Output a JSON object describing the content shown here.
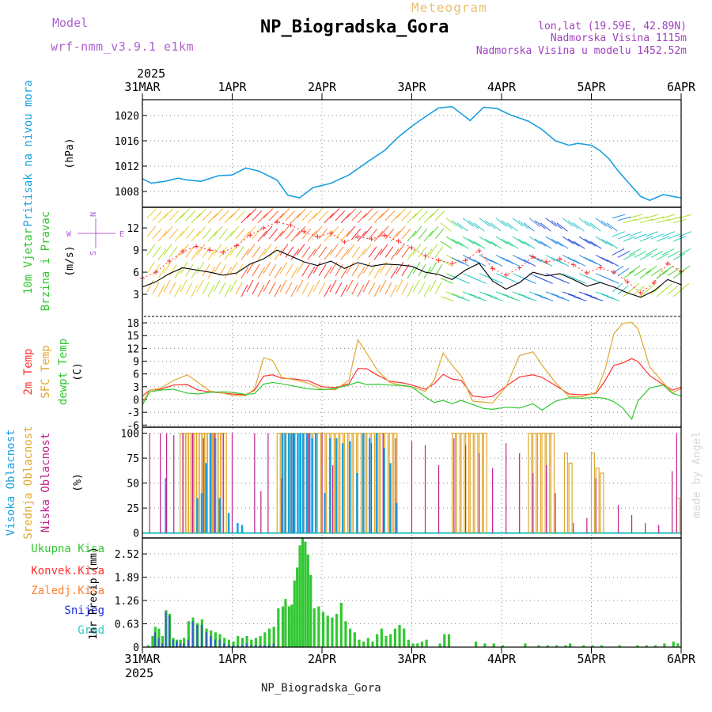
{
  "header": {
    "model_label": "Model",
    "model_name": "wrf-nmm_v3.9.1 e1km",
    "meteogram_label": "Meteogram",
    "station_title": "NP_Biogradska_Gora",
    "lonlat": "lon,lat (19.59E, 42.89N)",
    "elevation": "Nadmorska Visina 1115m",
    "model_elevation": "Nadmorska Visina u modelu 1452.52m",
    "footer": "NP_Biogradska_Gora",
    "credit": "made by Angel",
    "colors": {
      "model": "#b060d0",
      "meteogram": "#e8c070",
      "title": "#000000",
      "info": "#a040c0",
      "credit": "#d8d8d8"
    }
  },
  "time_axis": {
    "top_year": "2025",
    "bottom_year": "2025",
    "labels": [
      "31MAR",
      "1APR",
      "2APR",
      "3APR",
      "4APR",
      "5APR",
      "6APR"
    ],
    "start_day": 0,
    "end_day": 6
  },
  "chart_data": [
    {
      "name": "pressure",
      "type": "line",
      "ylabel_title": "Pritisak na nivou mora",
      "ylabel_unit": "(hPa)",
      "y_ticks": [
        "1008",
        "1012",
        "1016",
        "1020"
      ],
      "y_tick_values": [
        1008,
        1012,
        1016,
        1020
      ],
      "ylim": [
        1005.5,
        1022.5
      ],
      "grid": true,
      "color": "#1aa0e0",
      "x_days": [
        0,
        0.1,
        0.25,
        0.4,
        0.5,
        0.65,
        0.85,
        1.0,
        1.15,
        1.3,
        1.5,
        1.62,
        1.75,
        1.9,
        2.1,
        2.3,
        2.5,
        2.7,
        2.85,
        3.0,
        3.15,
        3.3,
        3.45,
        3.55,
        3.65,
        3.8,
        3.95,
        4.1,
        4.3,
        4.45,
        4.6,
        4.75,
        4.85,
        5.0,
        5.1,
        5.2,
        5.3,
        5.45,
        5.55,
        5.65,
        5.8,
        5.95,
        6.0
      ],
      "values": [
        1010,
        1009.3,
        1009.6,
        1010.1,
        1009.8,
        1009.6,
        1010.5,
        1010.6,
        1011.7,
        1011.2,
        1009.8,
        1007.4,
        1007.0,
        1008.6,
        1009.3,
        1010.6,
        1012.6,
        1014.5,
        1016.6,
        1018.3,
        1019.8,
        1021.2,
        1021.4,
        1020.3,
        1019.2,
        1021.3,
        1021.1,
        1020.1,
        1019.1,
        1017.8,
        1016.0,
        1015.3,
        1015.6,
        1015.3,
        1014.4,
        1013.1,
        1011.2,
        1008.8,
        1007.2,
        1006.6,
        1007.5,
        1007.1,
        1007.0
      ]
    },
    {
      "name": "wind",
      "type": "line",
      "ylabel_title_1": "10m Vjetar",
      "ylabel_title_2": "Brzina i Pravac",
      "ylabel_unit": "(m/s)",
      "compass": {
        "n": "N",
        "s": "S",
        "w": "W",
        "e": "E"
      },
      "y_ticks": [
        "3",
        "6",
        "9",
        "12"
      ],
      "y_tick_values": [
        3,
        6,
        9,
        12
      ],
      "ylim": [
        0,
        14.8
      ],
      "grid": true,
      "speed_color": "#000000",
      "gust_color": "#ff3030",
      "x_days": [
        0,
        0.15,
        0.3,
        0.45,
        0.6,
        0.75,
        0.9,
        1.05,
        1.2,
        1.35,
        1.5,
        1.65,
        1.8,
        1.95,
        2.1,
        2.25,
        2.4,
        2.55,
        2.7,
        2.85,
        3.0,
        3.15,
        3.3,
        3.45,
        3.6,
        3.75,
        3.9,
        4.05,
        4.2,
        4.35,
        4.5,
        4.65,
        4.8,
        4.95,
        5.1,
        5.25,
        5.4,
        5.55,
        5.7,
        5.85,
        6.0
      ],
      "speed": [
        4.0,
        4.7,
        5.8,
        6.6,
        6.3,
        6.0,
        5.6,
        5.9,
        7.1,
        7.8,
        9.0,
        8.2,
        7.4,
        6.9,
        7.5,
        6.5,
        7.3,
        6.8,
        7.1,
        7.0,
        6.8,
        6.0,
        5.7,
        5.0,
        6.3,
        7.2,
        4.8,
        3.7,
        4.6,
        6.0,
        5.5,
        5.8,
        5.0,
        4.1,
        4.6,
        4.0,
        3.2,
        2.6,
        3.5,
        5.0,
        4.3
      ],
      "gust": [
        5.2,
        6.0,
        7.5,
        8.8,
        9.5,
        9.0,
        8.7,
        9.6,
        11.0,
        12.0,
        12.8,
        12.4,
        11.5,
        10.8,
        11.3,
        10.1,
        10.8,
        10.5,
        11.0,
        10.2,
        9.3,
        8.2,
        7.6,
        7.2,
        7.6,
        8.9,
        6.5,
        5.6,
        6.6,
        8.1,
        7.4,
        7.8,
        7.0,
        5.9,
        6.6,
        6.0,
        4.7,
        3.2,
        4.6,
        7.2,
        6.1
      ],
      "arrow_rows": [
        3,
        5.5,
        8,
        10.5,
        13
      ]
    },
    {
      "name": "temperature",
      "type": "line",
      "ylabel_title_1": "2m Temp",
      "ylabel_title_2": "SFC Temp",
      "ylabel_title_3": "dewpt Temp",
      "ylabel_unit": "(C)",
      "y_ticks": [
        "-3",
        "0",
        "3",
        "6",
        "9",
        "12",
        "15",
        "18",
        "-6"
      ],
      "y_tick_values": [
        -3,
        0,
        3,
        6,
        9,
        12,
        15,
        18,
        -6
      ],
      "ylim": [
        -6.5,
        19.5
      ],
      "grid": true,
      "x_days": [
        0,
        0.08,
        0.2,
        0.35,
        0.5,
        0.62,
        0.75,
        0.9,
        1.0,
        1.15,
        1.25,
        1.35,
        1.45,
        1.55,
        1.7,
        1.85,
        2.0,
        2.15,
        2.3,
        2.4,
        2.5,
        2.62,
        2.75,
        2.9,
        3.0,
        3.15,
        3.25,
        3.35,
        3.45,
        3.55,
        3.68,
        3.8,
        3.9,
        4.05,
        4.2,
        4.35,
        4.45,
        4.6,
        4.75,
        4.9,
        5.05,
        5.15,
        5.25,
        5.35,
        5.45,
        5.52,
        5.65,
        5.8,
        5.9,
        6.0
      ],
      "series": [
        {
          "name": "2m Temp",
          "color": "#ff3030",
          "values": [
            0.8,
            2.2,
            2.4,
            3.4,
            3.5,
            2.2,
            1.8,
            1.5,
            1.3,
            1.1,
            2.2,
            5.5,
            5.8,
            5.0,
            4.8,
            4.4,
            3.0,
            2.8,
            3.7,
            7.3,
            7.2,
            5.7,
            4.3,
            3.9,
            3.4,
            2.4,
            3.7,
            5.9,
            4.8,
            4.5,
            0.8,
            0.5,
            0.7,
            3.1,
            5.3,
            5.8,
            5.2,
            3.3,
            1.3,
            1.1,
            1.4,
            4.3,
            8.0,
            8.6,
            9.6,
            8.9,
            5.6,
            3.5,
            2.2,
            2.9
          ]
        },
        {
          "name": "SFC Temp",
          "color": "#e0a830",
          "values": [
            -0.7,
            2.2,
            2.6,
            4.5,
            5.8,
            4.0,
            2.0,
            1.5,
            1.0,
            0.9,
            2.5,
            9.8,
            9.2,
            5.2,
            4.6,
            3.8,
            2.4,
            2.3,
            4.5,
            14.0,
            10.8,
            6.8,
            4.1,
            3.2,
            3.0,
            1.9,
            4.5,
            10.9,
            8.0,
            5.6,
            -0.4,
            -0.6,
            -0.8,
            3.0,
            10.3,
            11.2,
            8.1,
            4.0,
            0.7,
            0.7,
            1.6,
            6.8,
            15.4,
            17.9,
            18.1,
            16.6,
            7.6,
            4.0,
            1.6,
            2.6
          ]
        },
        {
          "name": "dewpt Temp",
          "color": "#30c830",
          "values": [
            -1.3,
            1.8,
            2.2,
            2.4,
            1.5,
            1.3,
            1.7,
            1.8,
            1.7,
            1.2,
            1.4,
            3.6,
            4.0,
            3.7,
            3.1,
            2.5,
            2.3,
            2.6,
            3.4,
            4.1,
            3.5,
            3.6,
            3.4,
            3.3,
            3.0,
            0.6,
            -0.7,
            -0.2,
            -1.0,
            -0.2,
            -1.2,
            -2.1,
            -2.3,
            -1.8,
            -2.0,
            -1.0,
            -2.5,
            -0.4,
            0.4,
            0.3,
            0.5,
            0.3,
            -0.5,
            -2.0,
            -4.6,
            -0.3,
            2.7,
            3.4,
            1.5,
            0.8
          ]
        }
      ]
    },
    {
      "name": "clouds",
      "type": "bar",
      "ylabel_title_1": "Visoka Oblacnost",
      "ylabel_title_2": "Srednja Oblacnost",
      "ylabel_title_3": "Niska Oblacnost",
      "ylabel_unit": "(%)",
      "y_ticks": [
        "0",
        "25",
        "50",
        "75",
        "100"
      ],
      "y_tick_values": [
        0,
        25,
        50,
        75,
        100
      ],
      "ylim": [
        -5,
        106
      ],
      "grid": true,
      "colors": {
        "high": "#1aa0e0",
        "mid": "#e0a830",
        "low": "#c0208a"
      },
      "low_days": [
        0.08,
        0.2,
        0.27,
        0.35,
        0.45,
        0.56,
        0.68,
        0.8,
        0.9,
        1.0,
        1.25,
        1.32,
        1.4,
        1.55,
        1.68,
        1.85,
        2.0,
        2.12,
        2.55,
        2.68,
        2.82,
        3.0,
        3.15,
        3.3,
        3.47,
        3.6,
        3.75,
        3.9,
        4.05,
        4.2,
        4.35,
        4.5,
        4.6,
        4.8,
        4.95,
        5.05,
        5.3,
        5.45,
        5.6,
        5.75,
        5.9,
        5.95
      ],
      "low_values": [
        100,
        100,
        100,
        98,
        100,
        100,
        95,
        100,
        100,
        100,
        100,
        42,
        100,
        55,
        100,
        100,
        100,
        68,
        90,
        100,
        95,
        92,
        88,
        68,
        95,
        88,
        80,
        65,
        90,
        80,
        60,
        68,
        40,
        10,
        15,
        55,
        28,
        18,
        10,
        8,
        62,
        100
      ],
      "mid_days": [
        0.42,
        0.45,
        0.48,
        0.51,
        0.54,
        0.57,
        0.6,
        0.63,
        0.66,
        0.69,
        0.72,
        0.75,
        0.78,
        0.81,
        0.84,
        0.87,
        0.9,
        1.5,
        1.55,
        1.6,
        1.65,
        1.7,
        1.75,
        1.8,
        1.85,
        1.9,
        1.95,
        2.0,
        2.05,
        2.1,
        2.15,
        2.2,
        2.25,
        2.3,
        2.35,
        2.4,
        2.45,
        2.5,
        2.55,
        2.6,
        2.65,
        2.7,
        2.75,
        2.8,
        3.45,
        3.5,
        3.55,
        3.6,
        3.65,
        3.7,
        3.75,
        3.8,
        4.3,
        4.35,
        4.4,
        4.45,
        4.5,
        4.55,
        4.7,
        4.75,
        5.0,
        5.05,
        5.1,
        5.95
      ],
      "mid_values": [
        100,
        100,
        100,
        100,
        100,
        100,
        100,
        100,
        100,
        100,
        100,
        100,
        100,
        100,
        100,
        100,
        100,
        100,
        100,
        100,
        100,
        100,
        100,
        100,
        100,
        100,
        100,
        100,
        100,
        100,
        100,
        100,
        100,
        100,
        100,
        100,
        100,
        100,
        100,
        100,
        100,
        100,
        100,
        100,
        100,
        100,
        100,
        100,
        100,
        100,
        100,
        100,
        100,
        100,
        100,
        100,
        100,
        100,
        80,
        70,
        80,
        65,
        60,
        35
      ],
      "high_days": [
        0.25,
        0.6,
        0.65,
        0.7,
        0.75,
        0.8,
        0.85,
        0.95,
        1.05,
        1.1,
        1.55,
        1.58,
        1.62,
        1.65,
        1.68,
        1.72,
        1.75,
        1.78,
        1.82,
        1.85,
        1.88,
        1.92,
        2.02,
        2.08,
        2.15,
        2.22,
        2.3,
        2.38,
        2.45,
        2.52,
        2.6,
        2.68,
        2.75,
        2.82
      ],
      "high_values": [
        55,
        35,
        40,
        70,
        100,
        95,
        35,
        20,
        10,
        8,
        100,
        100,
        100,
        100,
        100,
        100,
        100,
        100,
        100,
        100,
        95,
        100,
        40,
        95,
        95,
        90,
        92,
        60,
        100,
        95,
        100,
        85,
        70,
        30
      ]
    },
    {
      "name": "precipitation",
      "type": "bar",
      "legend": [
        "Ukupna Kisa",
        "Konvek.Kisa",
        "Zaledj.Kisa",
        "Snijeg",
        "Grad"
      ],
      "legend_colors": [
        "#30c830",
        "#ff3030",
        "#ff8030",
        "#2030e0",
        "#30c8c0"
      ],
      "ylabel_unit": "1hr Precip (mm)",
      "y_ticks": [
        "0",
        "0.63",
        "1.26",
        "1.89",
        "2.52"
      ],
      "y_tick_values": [
        0,
        0.63,
        1.26,
        1.89,
        2.52
      ],
      "ylim": [
        0,
        2.95
      ],
      "grid": true,
      "bar_width_days": 0.028,
      "x_days": [
        0.05,
        0.1,
        0.13,
        0.17,
        0.21,
        0.25,
        0.29,
        0.33,
        0.37,
        0.41,
        0.45,
        0.5,
        0.55,
        0.6,
        0.65,
        0.7,
        0.75,
        0.8,
        0.85,
        0.9,
        0.95,
        1.0,
        1.05,
        1.1,
        1.15,
        1.2,
        1.25,
        1.3,
        1.35,
        1.4,
        1.45,
        1.5,
        1.55,
        1.58,
        1.62,
        1.65,
        1.68,
        1.71,
        1.74,
        1.77,
        1.8,
        1.83,
        1.86,
        1.9,
        1.95,
        2.0,
        2.05,
        2.1,
        2.15,
        2.2,
        2.25,
        2.3,
        2.35,
        2.4,
        2.45,
        2.5,
        2.55,
        2.6,
        2.65,
        2.7,
        2.75,
        2.8,
        2.85,
        2.9,
        2.95,
        3.0,
        3.05,
        3.1,
        3.15,
        3.3,
        3.35,
        3.4,
        3.7,
        3.8,
        3.9,
        4.0,
        4.25,
        4.4,
        4.5,
        4.6,
        4.7,
        4.75,
        4.9,
        5.0,
        5.1,
        5.3,
        5.5,
        5.6,
        5.7,
        5.8,
        5.9,
        5.95
      ],
      "values": [
        0.05,
        0.3,
        0.55,
        0.5,
        0.3,
        1.0,
        0.9,
        0.25,
        0.2,
        0.2,
        0.25,
        0.7,
        0.8,
        0.65,
        0.75,
        0.5,
        0.45,
        0.4,
        0.35,
        0.25,
        0.2,
        0.15,
        0.3,
        0.25,
        0.3,
        0.2,
        0.25,
        0.3,
        0.4,
        0.5,
        0.55,
        1.05,
        1.1,
        1.3,
        1.1,
        1.15,
        1.8,
        2.15,
        2.75,
        2.95,
        2.85,
        2.5,
        1.95,
        1.05,
        1.1,
        0.95,
        0.85,
        0.8,
        0.9,
        1.2,
        0.7,
        0.5,
        0.4,
        0.2,
        0.15,
        0.25,
        0.15,
        0.35,
        0.5,
        0.3,
        0.35,
        0.5,
        0.6,
        0.5,
        0.2,
        0.1,
        0.1,
        0.15,
        0.2,
        0.1,
        0.35,
        0.35,
        0.15,
        0.1,
        0.1,
        0.05,
        0.1,
        0.05,
        0.05,
        0.05,
        0.05,
        0.1,
        0.05,
        0.05,
        0.05,
        0.05,
        0.05,
        0.05,
        0.05,
        0.1,
        0.15,
        0.1
      ],
      "snow_values": [
        0,
        0,
        0.4,
        0.25,
        0.1,
        0.95,
        0.85,
        0.2,
        0.15,
        0.1,
        0.1,
        0.2,
        0.7,
        0.6,
        0.6,
        0.4,
        0.3,
        0.2,
        0.2,
        0.1,
        0.05,
        0.05,
        0.05,
        0.05,
        0.1,
        0.05,
        0.05,
        0.05,
        0.05,
        0.05,
        0.1,
        0,
        0,
        0,
        0,
        0,
        0,
        0,
        0,
        0,
        0,
        0,
        0,
        0,
        0,
        0,
        0,
        0,
        0,
        0,
        0,
        0,
        0,
        0,
        0,
        0,
        0,
        0,
        0,
        0,
        0,
        0,
        0,
        0,
        0,
        0,
        0,
        0,
        0,
        0,
        0,
        0,
        0,
        0,
        0,
        0,
        0,
        0,
        0,
        0,
        0,
        0,
        0,
        0,
        0,
        0,
        0,
        0,
        0,
        0,
        0,
        0
      ]
    }
  ]
}
